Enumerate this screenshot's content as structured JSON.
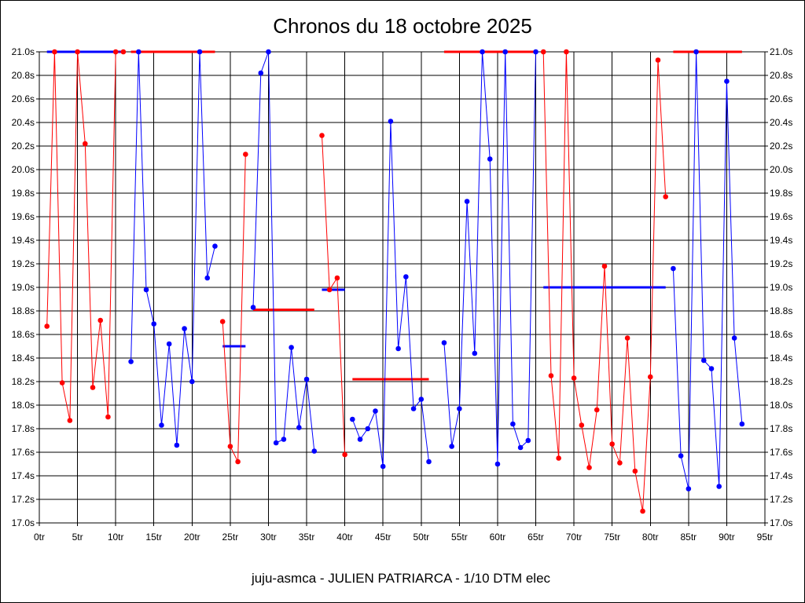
{
  "chart_data": {
    "type": "line",
    "title": "Chronos du 18 octobre 2025",
    "footer": "juju-asmca - JULIEN PATRIARCA - 1/10 DTM elec",
    "x_unit": "tr",
    "y_unit": "s",
    "xlim": [
      0,
      95
    ],
    "ylim": [
      17.0,
      21.0
    ],
    "x_ticks": [
      0,
      5,
      10,
      15,
      20,
      25,
      30,
      35,
      40,
      45,
      50,
      55,
      60,
      65,
      70,
      75,
      80,
      85,
      90,
      95
    ],
    "x_tick_labels": [
      "0tr",
      "5tr",
      "10tr",
      "15tr",
      "20tr",
      "25tr",
      "30tr",
      "35tr",
      "40tr",
      "45tr",
      "50tr",
      "55tr",
      "60tr",
      "65tr",
      "70tr",
      "75tr",
      "80tr",
      "85tr",
      "90tr",
      "95tr"
    ],
    "y_ticks": [
      17.0,
      17.2,
      17.4,
      17.6,
      17.8,
      18.0,
      18.2,
      18.4,
      18.6,
      18.8,
      19.0,
      19.2,
      19.4,
      19.6,
      19.8,
      20.0,
      20.2,
      20.4,
      20.6,
      20.8,
      21.0
    ],
    "y_tick_labels": [
      "17.0s",
      "17.2s",
      "17.4s",
      "17.6s",
      "17.8s",
      "18.0s",
      "18.2s",
      "18.4s",
      "18.6s",
      "18.8s",
      "19.0s",
      "19.2s",
      "19.4s",
      "19.6s",
      "19.8s",
      "20.0s",
      "20.2s",
      "20.4s",
      "20.6s",
      "20.8s",
      "21.0s"
    ],
    "grid": true,
    "colors": {
      "red": "#ff0000",
      "blue": "#0000ff",
      "grid": "#000000"
    },
    "series": [
      {
        "color": "#ff0000",
        "points": [
          [
            1,
            18.67
          ],
          [
            2,
            21.0
          ],
          [
            3,
            18.19
          ],
          [
            4,
            17.87
          ],
          [
            5,
            21.0
          ],
          [
            6,
            20.22
          ],
          [
            7,
            18.15
          ],
          [
            8,
            18.72
          ],
          [
            9,
            17.9
          ],
          [
            10,
            21.0
          ],
          [
            11,
            21.0
          ]
        ]
      },
      {
        "color": "#0000ff",
        "points": [
          [
            12,
            18.37
          ],
          [
            13,
            21.0
          ],
          [
            14,
            18.98
          ],
          [
            15,
            18.69
          ],
          [
            16,
            17.83
          ],
          [
            17,
            18.52
          ],
          [
            18,
            17.66
          ],
          [
            19,
            18.65
          ],
          [
            20,
            18.2
          ],
          [
            21,
            21.0
          ],
          [
            22,
            19.08
          ],
          [
            23,
            19.35
          ]
        ]
      },
      {
        "color": "#ff0000",
        "points": [
          [
            24,
            18.71
          ],
          [
            25,
            17.65
          ],
          [
            26,
            17.52
          ],
          [
            27,
            20.13
          ]
        ]
      },
      {
        "color": "#0000ff",
        "points": [
          [
            28,
            18.83
          ],
          [
            29,
            20.82
          ],
          [
            30,
            21.0
          ],
          [
            31,
            17.68
          ],
          [
            32,
            17.71
          ],
          [
            33,
            18.49
          ],
          [
            34,
            17.81
          ],
          [
            35,
            18.22
          ],
          [
            36,
            17.61
          ]
        ]
      },
      {
        "color": "#ff0000",
        "points": [
          [
            37,
            20.29
          ],
          [
            38,
            18.98
          ],
          [
            39,
            19.08
          ],
          [
            40,
            17.58
          ]
        ]
      },
      {
        "color": "#0000ff",
        "points": [
          [
            41,
            17.88
          ],
          [
            42,
            17.71
          ],
          [
            43,
            17.8
          ],
          [
            44,
            17.95
          ],
          [
            45,
            17.48
          ],
          [
            46,
            20.41
          ],
          [
            47,
            18.48
          ],
          [
            48,
            19.09
          ],
          [
            49,
            17.97
          ],
          [
            50,
            18.05
          ],
          [
            51,
            17.52
          ]
        ]
      },
      {
        "color": "#0000ff",
        "points": [
          [
            53,
            18.53
          ],
          [
            54,
            17.65
          ],
          [
            55,
            17.97
          ],
          [
            56,
            19.73
          ],
          [
            57,
            18.44
          ],
          [
            58,
            21.0
          ],
          [
            59,
            20.09
          ],
          [
            60,
            17.5
          ],
          [
            61,
            21.0
          ],
          [
            62,
            17.84
          ],
          [
            63,
            17.64
          ],
          [
            64,
            17.7
          ],
          [
            65,
            21.0
          ]
        ]
      },
      {
        "color": "#ff0000",
        "points": [
          [
            66,
            21.0
          ],
          [
            67,
            18.25
          ],
          [
            68,
            17.55
          ],
          [
            69,
            21.0
          ],
          [
            70,
            18.23
          ],
          [
            71,
            17.83
          ],
          [
            72,
            17.47
          ],
          [
            73,
            17.96
          ],
          [
            74,
            19.18
          ],
          [
            75,
            17.67
          ],
          [
            76,
            17.51
          ],
          [
            77,
            18.57
          ],
          [
            78,
            17.44
          ],
          [
            79,
            17.1
          ],
          [
            80,
            18.24
          ],
          [
            81,
            20.93
          ],
          [
            82,
            19.77
          ]
        ]
      },
      {
        "color": "#0000ff",
        "points": [
          [
            83,
            19.16
          ],
          [
            84,
            17.57
          ],
          [
            85,
            17.29
          ],
          [
            86,
            21.0
          ],
          [
            87,
            18.38
          ],
          [
            88,
            18.31
          ],
          [
            89,
            17.31
          ],
          [
            90,
            20.75
          ],
          [
            91,
            18.57
          ],
          [
            92,
            17.84
          ]
        ]
      }
    ],
    "averages": [
      {
        "color": "#0000ff",
        "x": [
          1,
          11
        ],
        "y": 21.0
      },
      {
        "color": "#ff0000",
        "x": [
          12,
          23
        ],
        "y": 21.0
      },
      {
        "color": "#0000ff",
        "x": [
          24,
          27
        ],
        "y": 18.5
      },
      {
        "color": "#ff0000",
        "x": [
          28,
          36
        ],
        "y": 18.81
      },
      {
        "color": "#0000ff",
        "x": [
          37,
          40
        ],
        "y": 18.98
      },
      {
        "color": "#ff0000",
        "x": [
          41,
          51
        ],
        "y": 18.22
      },
      {
        "color": "#ff0000",
        "x": [
          53,
          65
        ],
        "y": 21.0
      },
      {
        "color": "#0000ff",
        "x": [
          66,
          82
        ],
        "y": 19.0
      },
      {
        "color": "#ff0000",
        "x": [
          83,
          92
        ],
        "y": 21.0
      }
    ]
  }
}
